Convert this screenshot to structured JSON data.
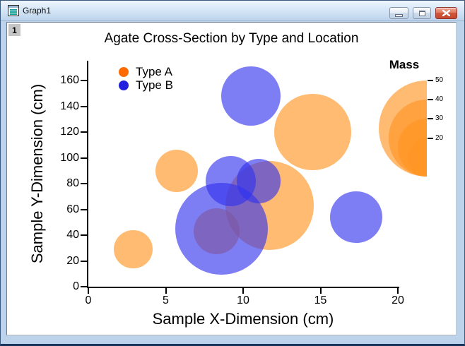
{
  "window": {
    "title": "Graph1",
    "layer_badge": "1"
  },
  "chart_data": {
    "type": "bubble",
    "title": "Agate Cross-Section by Type and Location",
    "xlabel": "Sample X-Dimension (cm)",
    "ylabel": "Sample Y-Dimension (cm)",
    "xlim": [
      0,
      20
    ],
    "ylim": [
      0,
      175
    ],
    "xticks": [
      0,
      5,
      10,
      15,
      20
    ],
    "yticks": [
      0,
      20,
      40,
      60,
      80,
      100,
      120,
      140,
      160
    ],
    "grid": false,
    "legend": {
      "position": "top-left",
      "entries": [
        {
          "label": "Type A",
          "color": "#ff6a00"
        },
        {
          "label": "Type B",
          "color": "#2121dd"
        }
      ]
    },
    "size_legend": {
      "title": "Mass",
      "values": [
        50,
        40,
        30,
        20
      ],
      "color": "#ff9422",
      "opacity": 0.64
    },
    "series": [
      {
        "name": "Type A",
        "fill": "#ff9422",
        "opacity": 0.64,
        "points": [
          {
            "x": 8.3,
            "y": 43,
            "mass": 24,
            "z": 0
          },
          {
            "x": 11.7,
            "y": 63,
            "mass": 46,
            "z": 1
          },
          {
            "x": 5.7,
            "y": 90,
            "mass": 22,
            "z": 2
          },
          {
            "x": 2.9,
            "y": 29,
            "mass": 20,
            "z": 3
          },
          {
            "x": 14.5,
            "y": 120,
            "mass": 40,
            "z": 4
          }
        ]
      },
      {
        "name": "Type B",
        "fill": "#3232ee",
        "opacity": 0.63,
        "points": [
          {
            "x": 8.6,
            "y": 45,
            "mass": 48,
            "z": 5
          },
          {
            "x": 9.2,
            "y": 82,
            "mass": 26,
            "z": 6
          },
          {
            "x": 11.0,
            "y": 82,
            "mass": 23,
            "z": 7
          },
          {
            "x": 10.5,
            "y": 148,
            "mass": 31,
            "z": 8
          },
          {
            "x": 17.3,
            "y": 54,
            "mass": 27,
            "z": 9
          }
        ]
      }
    ]
  }
}
